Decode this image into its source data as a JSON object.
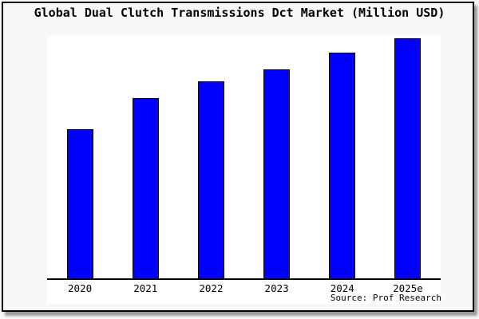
{
  "figure": {
    "background_color": "#f8f8f8",
    "frame_border_color": "#000000",
    "shadow_color": "#999999"
  },
  "chart_data": {
    "type": "bar",
    "title": "Global Dual Clutch Transmissions Dct Market (Million USD)",
    "categories": [
      "2020",
      "2021",
      "2022",
      "2023",
      "2024",
      "2025e"
    ],
    "values": [
      62,
      75,
      82,
      87,
      94,
      100
    ],
    "value_scale": "relative index, tallest bar (2025e) = 100; no numeric y-axis shown in chart",
    "xlabel": "",
    "ylabel": "",
    "ylim": [
      0,
      105
    ],
    "grid": false,
    "legend_position": "none",
    "yaxis_visible": false,
    "bar_fill_color": "#0000ff",
    "bar_border_color": "#000000",
    "plot_background": "#ffffff",
    "axis_line_color": "#000000",
    "source_label": "Source: Prof Research"
  }
}
